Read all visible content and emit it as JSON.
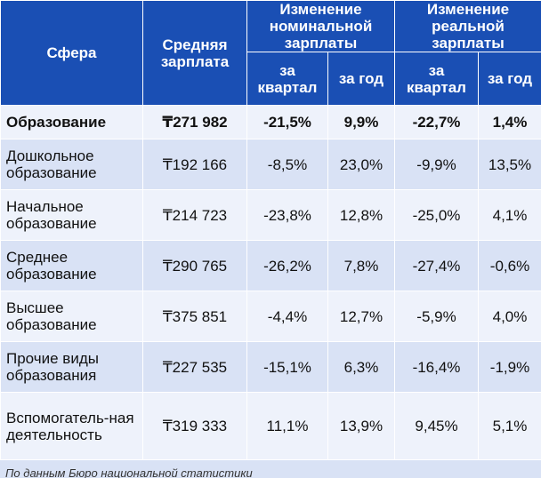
{
  "header": {
    "sfera": "Сфера",
    "salary": "Средняя зарплата",
    "nominal": "Изменение номинальной зарплаты",
    "real": "Изменение реальной зарплаты",
    "quarter": "за квартал",
    "year": "за год"
  },
  "rows": [
    {
      "sfera": "Образование",
      "salary": "₸271 982",
      "nom_q": "-21,5%",
      "nom_y": "9,9%",
      "real_q": "-22,7%",
      "real_y": "1,4%"
    },
    {
      "sfera": "Дошкольное образование",
      "salary": "₸192 166",
      "nom_q": "-8,5%",
      "nom_y": "23,0%",
      "real_q": "-9,9%",
      "real_y": "13,5%"
    },
    {
      "sfera": "Начальное образование",
      "salary": "₸214 723",
      "nom_q": "-23,8%",
      "nom_y": "12,8%",
      "real_q": "-25,0%",
      "real_y": "4,1%"
    },
    {
      "sfera": "Среднее образование",
      "salary": "₸290 765",
      "nom_q": "-26,2%",
      "nom_y": "7,8%",
      "real_q": "-27,4%",
      "real_y": "-0,6%"
    },
    {
      "sfera": "Высшее образование",
      "salary": "₸375 851",
      "nom_q": "-4,4%",
      "nom_y": "12,7%",
      "real_q": "-5,9%",
      "real_y": "4,0%"
    },
    {
      "sfera": "Прочие виды образования",
      "salary": "₸227 535",
      "nom_q": "-15,1%",
      "nom_y": "6,3%",
      "real_q": "-16,4%",
      "real_y": "-1,9%"
    },
    {
      "sfera": "Вспомогатель-ная деятельность",
      "salary": "₸319 333",
      "nom_q": "11,1%",
      "nom_y": "13,9%",
      "real_q": "9,45%",
      "real_y": "5,1%"
    }
  ],
  "source": "По данным Бюро национальной статистики"
}
